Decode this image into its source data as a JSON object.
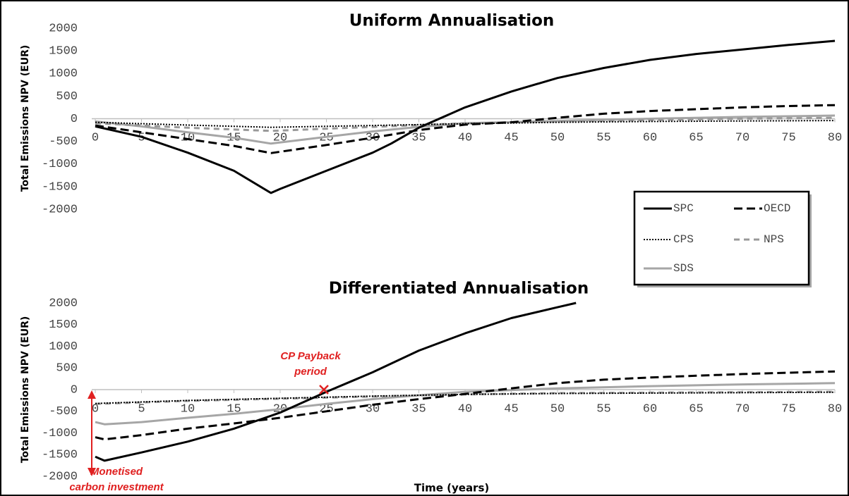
{
  "chart_data": [
    {
      "type": "line",
      "title": "Uniform Annualisation",
      "ylabel": "Total Emissions NPV (EUR)",
      "xlim": [
        0,
        80
      ],
      "xticks": [
        0,
        5,
        10,
        15,
        20,
        25,
        30,
        35,
        40,
        45,
        50,
        55,
        60,
        65,
        70,
        75,
        80
      ],
      "ylim": [
        -2000,
        2000
      ],
      "yticks": [
        2000,
        1500,
        1000,
        500,
        0,
        -500,
        -1000,
        -1500,
        -2000
      ],
      "series": [
        {
          "name": "SPC",
          "color": "#000000",
          "style": "solid",
          "x": [
            0,
            5,
            10,
            15,
            19,
            20,
            25,
            30,
            32,
            35,
            40,
            45,
            50,
            55,
            60,
            65,
            70,
            75,
            80
          ],
          "values": [
            -170,
            -400,
            -750,
            -1150,
            -1640,
            -1550,
            -1150,
            -750,
            -550,
            -200,
            250,
            600,
            900,
            1120,
            1300,
            1430,
            1530,
            1630,
            1720
          ]
        },
        {
          "name": "OECD",
          "color": "#000000",
          "style": "dashed",
          "x": [
            0,
            5,
            10,
            15,
            19,
            25,
            30,
            35,
            40,
            45,
            50,
            55,
            60,
            65,
            70,
            75,
            80
          ],
          "values": [
            -150,
            -300,
            -450,
            -600,
            -760,
            -580,
            -420,
            -250,
            -130,
            -80,
            20,
            110,
            170,
            210,
            250,
            280,
            300
          ]
        },
        {
          "name": "CPS",
          "color": "#000000",
          "style": "dotted",
          "x": [
            0,
            10,
            19,
            30,
            40,
            50,
            60,
            70,
            80
          ],
          "values": [
            -80,
            -140,
            -190,
            -150,
            -110,
            -80,
            -60,
            -50,
            -40
          ]
        },
        {
          "name": "NPS",
          "color": "#999999",
          "style": "dashed",
          "x": [
            0,
            10,
            19,
            30,
            40,
            50,
            60,
            70,
            80
          ],
          "values": [
            -100,
            -200,
            -270,
            -180,
            -100,
            -60,
            -30,
            0,
            20
          ]
        },
        {
          "name": "SDS",
          "color": "#a6a6a6",
          "style": "solid",
          "x": [
            0,
            5,
            10,
            15,
            19,
            25,
            30,
            35,
            40,
            50,
            60,
            70,
            80
          ],
          "values": [
            -60,
            -170,
            -300,
            -420,
            -550,
            -400,
            -280,
            -180,
            -100,
            -50,
            0,
            40,
            70
          ]
        }
      ]
    },
    {
      "type": "line",
      "title": "Differentiated Annualisation",
      "ylabel": "Total Emissions NPV (EUR)",
      "xlim": [
        0,
        80
      ],
      "xticks": [
        0,
        5,
        10,
        15,
        20,
        25,
        30,
        35,
        40,
        45,
        50,
        55,
        60,
        65,
        70,
        75,
        80
      ],
      "ylim": [
        -2000,
        2000
      ],
      "yticks": [
        2000,
        1500,
        1000,
        500,
        0,
        -500,
        -1000,
        -1500,
        -2000
      ],
      "series": [
        {
          "name": "SPC",
          "color": "#000000",
          "style": "solid",
          "x": [
            0,
            1,
            5,
            10,
            15,
            20,
            25,
            30,
            35,
            40,
            45,
            50,
            52
          ],
          "values": [
            -1550,
            -1640,
            -1450,
            -1200,
            -900,
            -530,
            -50,
            400,
            900,
            1300,
            1650,
            1900,
            2000
          ]
        },
        {
          "name": "OECD",
          "color": "#000000",
          "style": "dashed",
          "x": [
            0,
            1,
            5,
            10,
            15,
            20,
            25,
            30,
            35,
            40,
            45,
            50,
            55,
            60,
            65,
            70,
            75,
            80
          ],
          "values": [
            -1100,
            -1150,
            -1050,
            -900,
            -780,
            -650,
            -500,
            -350,
            -220,
            -100,
            30,
            150,
            230,
            280,
            320,
            360,
            390,
            420
          ]
        },
        {
          "name": "CPS",
          "color": "#000000",
          "style": "dotted",
          "x": [
            0,
            10,
            20,
            30,
            40,
            50,
            60,
            70,
            80
          ],
          "values": [
            -320,
            -250,
            -200,
            -150,
            -110,
            -90,
            -80,
            -70,
            -60
          ]
        },
        {
          "name": "NPS",
          "color": "#999999",
          "style": "dashed",
          "x": [
            0,
            10,
            20,
            30,
            40,
            50,
            60,
            70,
            80
          ],
          "values": [
            -330,
            -260,
            -210,
            -160,
            -110,
            -80,
            -70,
            -60,
            -50
          ]
        },
        {
          "name": "SDS",
          "color": "#a6a6a6",
          "style": "solid",
          "x": [
            0,
            1,
            5,
            10,
            15,
            20,
            25,
            30,
            35,
            40,
            50,
            60,
            70,
            80
          ],
          "values": [
            -750,
            -800,
            -750,
            -650,
            -560,
            -450,
            -330,
            -220,
            -130,
            -50,
            30,
            80,
            120,
            150
          ]
        }
      ]
    }
  ],
  "xlabel": "Time (years)",
  "annotations": {
    "payback": [
      "CP Payback",
      "period"
    ],
    "investment": [
      "Monetised",
      "carbon investment"
    ]
  }
}
